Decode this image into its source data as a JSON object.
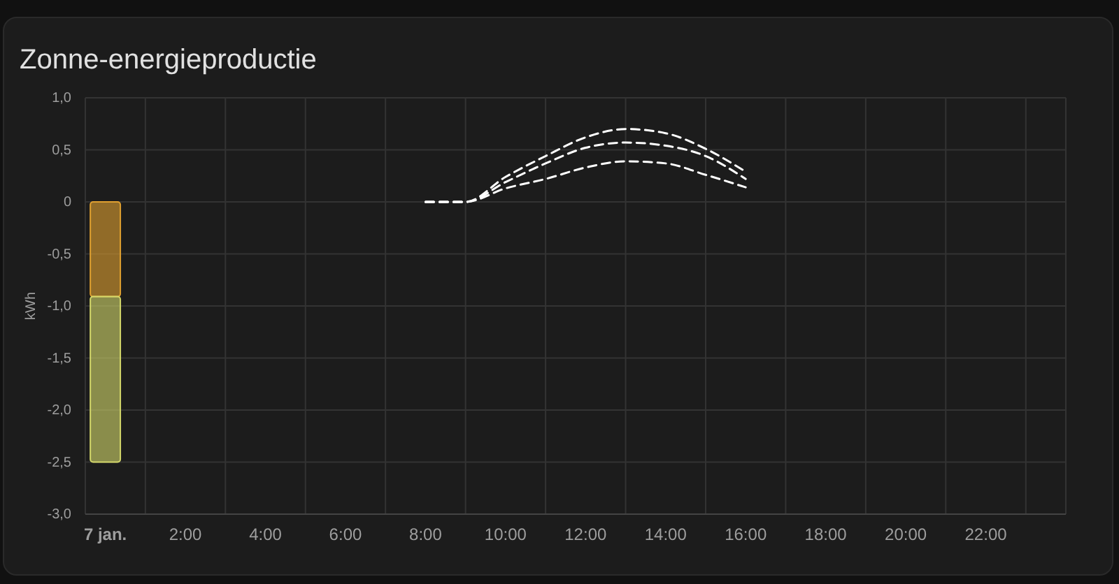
{
  "chart_data": {
    "type": "bar",
    "title": "Zonne-energieproductie",
    "ylabel": "kWh",
    "stacked": true,
    "grid": true,
    "line_style": "dashed",
    "marker": "none",
    "xlim": [
      -0.5,
      24
    ],
    "xticks": [
      {
        "value": 0,
        "label": "7 jan."
      },
      {
        "value": 2,
        "label": "2:00"
      },
      {
        "value": 4,
        "label": "4:00"
      },
      {
        "value": 6,
        "label": "6:00"
      },
      {
        "value": 8,
        "label": "8:00"
      },
      {
        "value": 10,
        "label": "10:00"
      },
      {
        "value": 12,
        "label": "12:00"
      },
      {
        "value": 14,
        "label": "14:00"
      },
      {
        "value": 16,
        "label": "16:00"
      },
      {
        "value": 18,
        "label": "18:00"
      },
      {
        "value": 20,
        "label": "20:00"
      },
      {
        "value": 22,
        "label": "22:00"
      }
    ],
    "ylim": [
      -3,
      1
    ],
    "yticks": [
      {
        "value": 1,
        "label": "1,0"
      },
      {
        "value": 0.5,
        "label": "0,5"
      },
      0,
      {
        "value": -0.5,
        "label": "-0,5"
      },
      {
        "value": -1,
        "label": "-1,0"
      },
      {
        "value": -1.5,
        "label": "-1,5"
      },
      {
        "value": -2,
        "label": "-2,0"
      },
      {
        "value": -2.5,
        "label": "-2,5"
      },
      {
        "value": -3,
        "label": "-3,0"
      }
    ],
    "series": [
      {
        "color": "#e0a030",
        "x": [
          0
        ],
        "values": [
          -0.91
        ]
      },
      {
        "color": "#d4d86a",
        "x": [
          0
        ],
        "values": [
          -1.59
        ]
      },
      {
        "type": "line",
        "color": "#ffffff",
        "x": [
          8,
          9,
          10,
          11,
          12,
          13,
          14,
          15,
          16
        ],
        "values": [
          0,
          0,
          0.24,
          0.44,
          0.62,
          0.7,
          0.66,
          0.51,
          0.29
        ]
      },
      {
        "type": "line",
        "color": "#ffffff",
        "x": [
          8,
          9,
          10,
          11,
          12,
          13,
          14,
          15,
          16
        ],
        "values": [
          0,
          0,
          0.19,
          0.37,
          0.52,
          0.57,
          0.54,
          0.44,
          0.22
        ]
      },
      {
        "type": "line",
        "color": "#ffffff",
        "x": [
          8,
          9,
          10,
          11,
          12,
          13,
          14,
          15,
          16
        ],
        "values": [
          0,
          0,
          0.13,
          0.22,
          0.33,
          0.39,
          0.37,
          0.26,
          0.14
        ]
      }
    ]
  }
}
